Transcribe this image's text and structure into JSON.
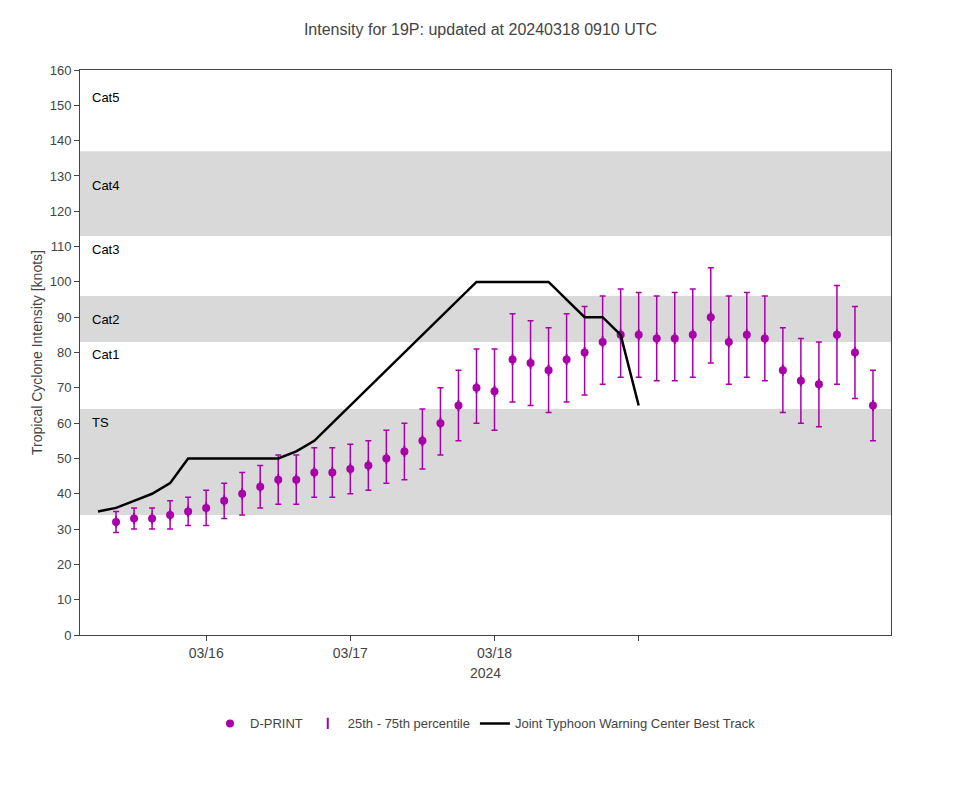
{
  "chart_data": {
    "type": "scatter",
    "title": "Intensity for 19P: updated at 20240318 0910 UTC",
    "xlabel": "2024",
    "ylabel": "Tropical Cyclone Intensity [knots]",
    "xlim": [
      -18,
      252
    ],
    "xticks": [
      {
        "value": 24,
        "label": "03/16"
      },
      {
        "value": 72,
        "label": "03/17"
      },
      {
        "value": 120,
        "label": "03/18"
      },
      {
        "value": 168,
        "label": null
      }
    ],
    "ylim": [
      0,
      160
    ],
    "yticks": [
      0,
      10,
      20,
      30,
      40,
      50,
      60,
      70,
      80,
      90,
      100,
      110,
      120,
      130,
      140,
      150,
      160
    ],
    "y2lim": [
      0,
      160
    ],
    "y2ticks": [
      0,
      10,
      20,
      30,
      40,
      50,
      60,
      70,
      80,
      90,
      100,
      110,
      120,
      130,
      140,
      150,
      160
    ],
    "grid": false,
    "legend": "bottom",
    "bands": [
      {
        "label": "Cat5",
        "ymin": 137,
        "ymax": 160,
        "color": "white",
        "label_y": 155
      },
      {
        "label": "Cat4",
        "ymin": 113,
        "ymax": 137,
        "color": "#d9d9d9",
        "label_y": 130
      },
      {
        "label": "Cat3",
        "ymin": 96,
        "ymax": 113,
        "color": "white",
        "label_y": 112
      },
      {
        "label": "Cat2",
        "ymin": 83,
        "ymax": 96,
        "color": "#d9d9d9",
        "label_y": 92
      },
      {
        "label": "Cat1",
        "ymin": 64,
        "ymax": 83,
        "color": "white",
        "label_y": 82
      },
      {
        "label": "TS",
        "ymin": 34,
        "ymax": 64,
        "color": "#d9d9d9",
        "label_y": 63
      }
    ],
    "series": [
      {
        "name": "D-PRINT",
        "type": "scatter",
        "marker": "circle",
        "color": "#aa00aa",
        "x": [
          -6,
          0,
          6,
          12,
          18,
          24,
          30,
          36,
          42,
          48,
          54,
          60,
          66,
          72,
          78,
          84,
          90,
          96,
          102,
          108,
          114,
          120,
          126,
          132,
          138,
          144,
          150,
          156,
          162,
          168,
          174,
          180,
          186,
          192,
          198,
          204,
          210,
          216,
          222,
          228,
          234,
          240,
          246
        ],
        "values": [
          32,
          33,
          33,
          34,
          35,
          36,
          38,
          40,
          42,
          44,
          44,
          46,
          46,
          47,
          48,
          50,
          52,
          55,
          60,
          65,
          70,
          69,
          78,
          77,
          75,
          78,
          80,
          83,
          85,
          85,
          84,
          84,
          85,
          90,
          83,
          85,
          84,
          75,
          72,
          71,
          85,
          80,
          65
        ],
        "error_low": [
          3,
          3,
          3,
          4,
          4,
          5,
          5,
          6,
          6,
          7,
          7,
          7,
          7,
          7,
          7,
          7,
          8,
          8,
          9,
          10,
          10,
          11,
          12,
          12,
          12,
          12,
          12,
          12,
          12,
          12,
          12,
          12,
          12,
          13,
          12,
          12,
          12,
          12,
          12,
          12,
          14,
          13,
          10
        ],
        "error_high": [
          3,
          3,
          3,
          4,
          4,
          5,
          5,
          6,
          6,
          7,
          7,
          7,
          7,
          7,
          7,
          8,
          8,
          9,
          10,
          10,
          11,
          12,
          13,
          12,
          12,
          13,
          13,
          13,
          13,
          12,
          12,
          13,
          13,
          14,
          13,
          12,
          12,
          12,
          12,
          12,
          14,
          13,
          10
        ],
        "error_name": "25th - 75th percentile"
      },
      {
        "name": "Joint Typhoon Warning Center Best Track",
        "type": "line",
        "color": "#000000",
        "x": [
          -12,
          -6,
          0,
          6,
          12,
          18,
          24,
          30,
          36,
          42,
          48,
          54,
          60,
          66,
          72,
          78,
          84,
          90,
          96,
          102,
          108,
          114,
          120,
          126,
          132,
          138,
          144,
          150,
          156,
          162,
          168
        ],
        "values": [
          35,
          36,
          38,
          40,
          43,
          50,
          50,
          50,
          50,
          50,
          50,
          52,
          55,
          60,
          65,
          70,
          75,
          80,
          85,
          90,
          95,
          100,
          100,
          100,
          100,
          100,
          95,
          90,
          90,
          85,
          65
        ]
      }
    ]
  }
}
